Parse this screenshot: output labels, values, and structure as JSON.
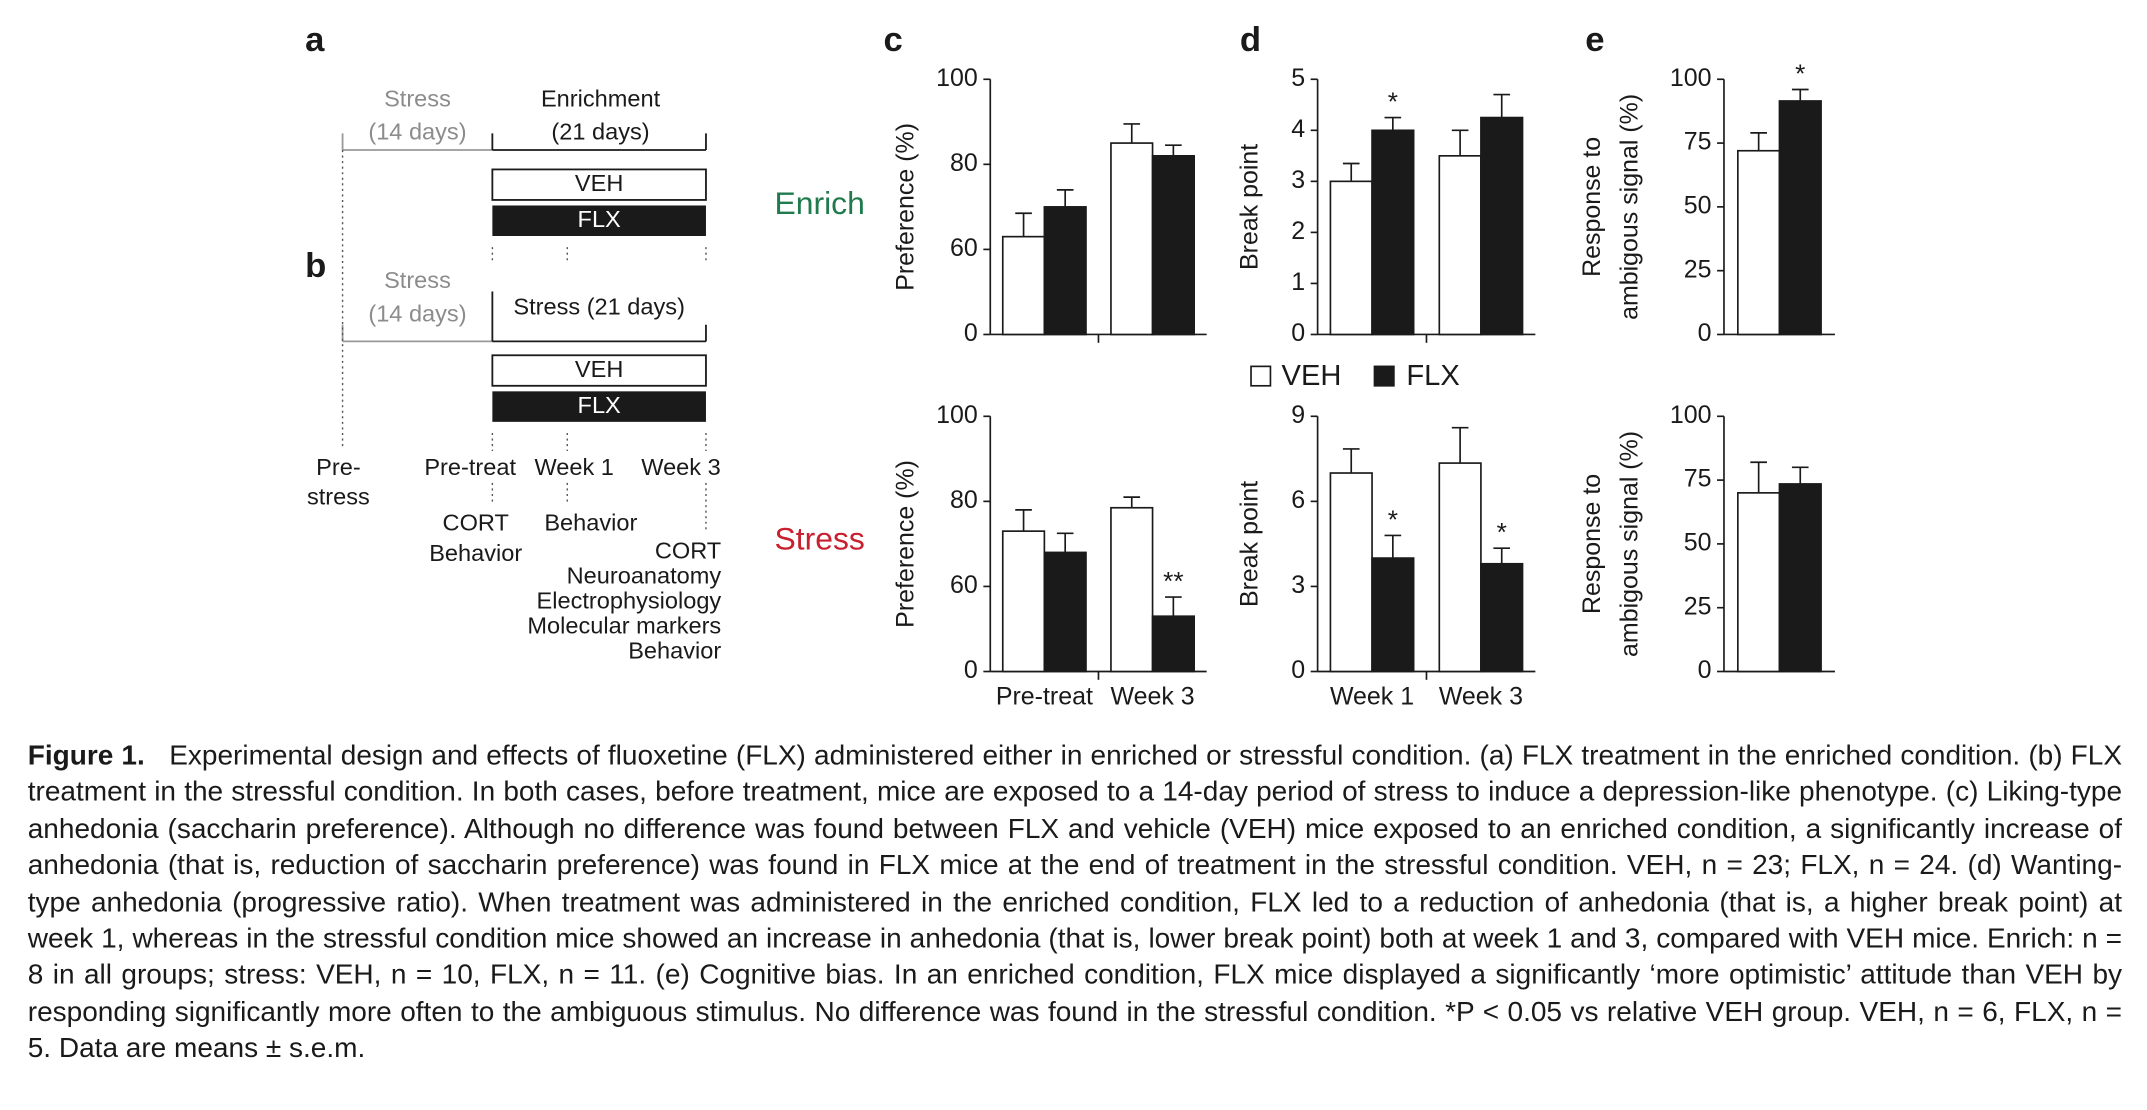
{
  "panel_letters": [
    "a",
    "b",
    "c",
    "d",
    "e"
  ],
  "design": {
    "a": {
      "pre": [
        "Stress",
        "(14 days)"
      ],
      "treat": [
        "Enrichment",
        "(21 days)"
      ],
      "veh": "VEH",
      "flx": "FLX"
    },
    "b": {
      "pre": [
        "Stress",
        "(14 days)"
      ],
      "treat": "Stress (21 days)",
      "veh": "VEH",
      "flx": "FLX"
    },
    "timeline": {
      "prestress": [
        "Pre-",
        "stress"
      ],
      "pretreat": "Pre-treat",
      "week1": "Week 1",
      "week3": "Week 3",
      "pretreat_tests": [
        "CORT",
        "Behavior"
      ],
      "week1_tests": [
        "Behavior"
      ],
      "week3_tests": [
        "CORT",
        "Neuroanatomy",
        "Electrophysiology",
        "Molecular markers",
        "Behavior"
      ]
    }
  },
  "row_labels": [
    {
      "text": "Enrich",
      "color": "#1f7a4d"
    },
    {
      "text": "Stress",
      "color": "#c8202e"
    }
  ],
  "chart_data": [
    {
      "type": "bar",
      "ylabel": "Preference (%)",
      "categories": [
        null,
        null
      ],
      "ylim": [
        0,
        100
      ],
      "yticks": [
        0,
        60,
        80,
        100
      ],
      "axis_break": [
        0,
        40
      ],
      "series": [
        {
          "name": "VEH",
          "color": "#ffffff",
          "values": [
            63,
            85
          ],
          "errors": [
            5.5,
            4.5
          ]
        },
        {
          "name": "FLX",
          "color": "#1a1a1a",
          "values": [
            70,
            82
          ],
          "errors": [
            4,
            2.5
          ]
        }
      ]
    },
    {
      "type": "bar",
      "ylabel": "Preference (%)",
      "categories": [
        "Pre-treat",
        "Week 3"
      ],
      "ylim": [
        0,
        100
      ],
      "yticks": [
        0,
        60,
        80,
        100
      ],
      "axis_break": [
        0,
        40
      ],
      "series": [
        {
          "color": "#ffffff",
          "values": [
            73,
            78.5
          ],
          "errors": [
            5,
            2.5
          ]
        },
        {
          "color": "#1a1a1a",
          "values": [
            68,
            53
          ],
          "errors": [
            4.5,
            4.5
          ],
          "significance": [
            null,
            "**"
          ]
        }
      ]
    },
    {
      "type": "bar",
      "ylabel": "Break point",
      "categories": [
        null,
        null
      ],
      "ylim": [
        0,
        5
      ],
      "yticks": [
        0,
        1,
        2,
        3,
        4,
        5
      ],
      "series": [
        {
          "color": "#ffffff",
          "values": [
            3.0,
            3.5
          ],
          "errors": [
            0.35,
            0.5
          ]
        },
        {
          "color": "#1a1a1a",
          "values": [
            4.0,
            4.25
          ],
          "errors": [
            0.25,
            0.45
          ],
          "significance": [
            "*",
            null
          ]
        }
      ]
    },
    {
      "type": "bar",
      "ylabel": "Break point",
      "categories": [
        "Week 1",
        "Week 3"
      ],
      "ylim": [
        0,
        9
      ],
      "yticks": [
        0,
        3,
        6,
        9
      ],
      "series": [
        {
          "color": "#ffffff",
          "values": [
            7.0,
            7.35
          ],
          "errors": [
            0.85,
            1.25
          ]
        },
        {
          "color": "#1a1a1a",
          "values": [
            4.0,
            3.8
          ],
          "errors": [
            0.8,
            0.55
          ],
          "significance": [
            "*",
            "*"
          ]
        }
      ]
    },
    {
      "type": "bar",
      "ylabel": [
        "Response to",
        "ambigous signal (%)"
      ],
      "categories": [
        null
      ],
      "ylim": [
        0,
        100
      ],
      "yticks": [
        0,
        25,
        50,
        75,
        100
      ],
      "series": [
        {
          "color": "#ffffff",
          "values": [
            72
          ],
          "errors": [
            7
          ]
        },
        {
          "color": "#1a1a1a",
          "values": [
            91.5
          ],
          "errors": [
            4.5
          ],
          "significance": [
            "*"
          ]
        }
      ]
    },
    {
      "type": "bar",
      "ylabel": [
        "Response to",
        "ambigous signal (%)"
      ],
      "categories": [
        null
      ],
      "ylim": [
        0,
        100
      ],
      "yticks": [
        0,
        25,
        50,
        75,
        100
      ],
      "series": [
        {
          "color": "#ffffff",
          "values": [
            70
          ],
          "errors": [
            12
          ]
        },
        {
          "color": "#1a1a1a",
          "values": [
            73.5
          ],
          "errors": [
            6.5
          ]
        }
      ]
    }
  ],
  "caption": {
    "label": "Figure 1.",
    "text": "Experimental design and effects of fluoxetine (FLX) administered either in enriched or stressful condition. (a) FLX treatment in the enriched condition. (b) FLX treatment in the stressful condition. In both cases, before treatment, mice are exposed to a 14-day period of stress to induce a depression-like phenotype. (c) Liking-type anhedonia (saccharin preference). Although no difference was found between FLX and vehicle (VEH) mice exposed to an enriched condition, a significantly increase of anhedonia (that is, reduction of saccharin preference) was found in FLX mice at the end of treatment in the stressful condition. VEH, n = 23; FLX, n = 24. (d) Wanting-type anhedonia (progressive ratio). When treatment was administered in the enriched condition, FLX led to a reduction of anhedonia (that is, a higher break point) at week 1, whereas in the stressful condition mice showed an increase in anhedonia (that is, lower break point) both at week 1 and 3, compared with VEH mice. Enrich: n = 8 in all groups; stress: VEH, n = 10, FLX, n = 11. (e) Cognitive bias. In an enriched condition, FLX mice displayed a significantly ‘more optimistic’ attitude than VEH by responding significantly more often to the ambiguous stimulus. No difference was found in the stressful condition. *P < 0.05 vs relative VEH group. VEH, n = 6, FLX, n = 5. Data are means ± s.e.m."
  }
}
